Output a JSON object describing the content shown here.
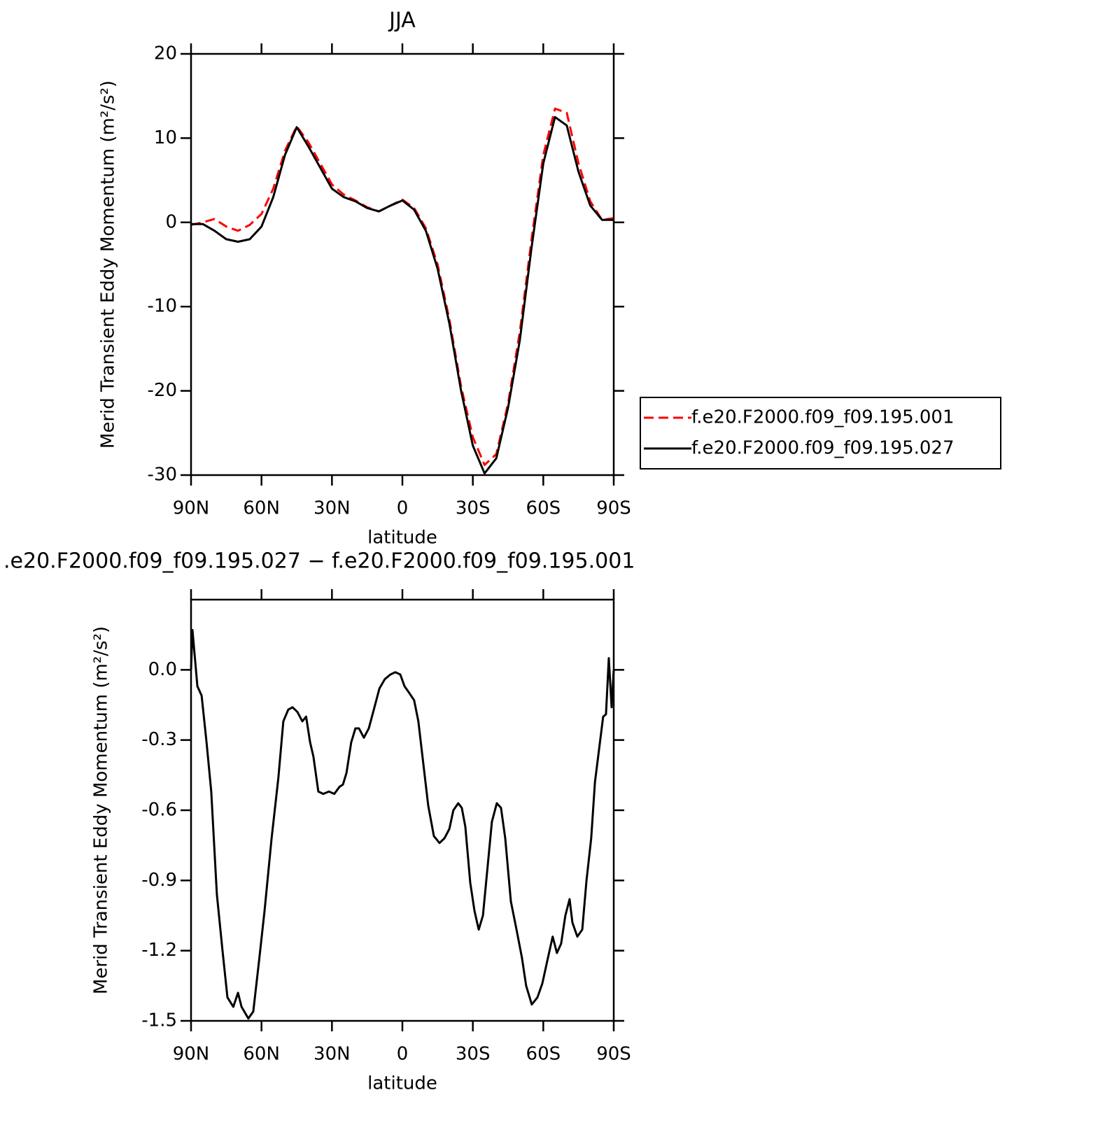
{
  "chart_data": [
    {
      "type": "line",
      "title": "JJA",
      "xlabel": "latitude",
      "ylabel": "Merid Transient Eddy Momentum (m²/s²)",
      "x": [
        90,
        85,
        80,
        75,
        70,
        65,
        60,
        55,
        50,
        45,
        40,
        35,
        30,
        25,
        20,
        15,
        10,
        5,
        0,
        -5,
        -10,
        -15,
        -20,
        -25,
        -30,
        -35,
        -40,
        -45,
        -50,
        -55,
        -60,
        -65,
        -70,
        -75,
        -80,
        -85,
        -90
      ],
      "xlim": [
        90,
        -90
      ],
      "xticks": [
        {
          "value": 90,
          "label": "90N"
        },
        {
          "value": 60,
          "label": "60N"
        },
        {
          "value": 30,
          "label": "30N"
        },
        0,
        {
          "value": -30,
          "label": "30S"
        },
        {
          "value": -60,
          "label": "60S"
        },
        {
          "value": -90,
          "label": "90S"
        }
      ],
      "ylim": [
        -30,
        20
      ],
      "yticks": [
        -30,
        -20,
        -10,
        0,
        10,
        20
      ],
      "legend": "right",
      "series": [
        {
          "name": "f.e20.F2000.f09_f09.195.001",
          "color": "#ff0000",
          "dashed": true,
          "values": [
            -0.3,
            0,
            0.4,
            -0.5,
            -1,
            -0.3,
            1,
            4,
            8.5,
            11.4,
            9.5,
            7,
            4.5,
            3.3,
            2.6,
            1.8,
            1.3,
            2,
            2.7,
            1.7,
            -0.7,
            -5,
            -11.5,
            -19.5,
            -25.5,
            -28.8,
            -27.5,
            -21.5,
            -13,
            -2,
            8,
            13.5,
            13,
            7,
            2.5,
            0.3,
            0.5
          ]
        },
        {
          "name": "f.e20.F2000.f09_f09.195.027",
          "color": "#000000",
          "dashed": false,
          "values": [
            -0.2,
            -0.2,
            -1,
            -2,
            -2.3,
            -2,
            -0.5,
            3,
            8,
            11.3,
            9,
            6.5,
            4,
            3,
            2.5,
            1.7,
            1.3,
            2,
            2.6,
            1.5,
            -1,
            -5.5,
            -12,
            -20,
            -26.5,
            -29.8,
            -28,
            -22,
            -14,
            -3,
            7,
            12.5,
            11.5,
            6,
            2,
            0.3,
            0.3
          ]
        }
      ]
    },
    {
      "type": "line",
      "title": ".e20.F2000.f09_f09.195.027 − f.e20.F2000.f09_f09.195.001",
      "xlabel": "latitude",
      "ylabel": "Merid Transient Eddy Momentum (m²/s²)",
      "x": [
        90,
        89.4,
        87.3,
        85.5,
        83.4,
        81.4,
        79,
        76.6,
        74.5,
        72,
        70,
        68.5,
        65.6,
        63.5,
        61,
        58.7,
        55.7,
        52.8,
        50.7,
        48.6,
        46.8,
        44.7,
        42.6,
        41,
        39.3,
        37.9,
        35.8,
        33.7,
        31.3,
        29,
        26.8,
        25.3,
        23.8,
        21.8,
        20,
        18.5,
        16.4,
        14.3,
        11.9,
        9.8,
        7.5,
        5.1,
        3,
        0.9,
        -0.9,
        -3,
        -5,
        -6.8,
        -8.9,
        -11,
        -13.4,
        -15.8,
        -17.9,
        -20,
        -21.7,
        -23.8,
        -25.3,
        -26.8,
        -28.9,
        -30.7,
        -32.5,
        -34.3,
        -36.3,
        -38.1,
        -40.2,
        -42,
        -43.8,
        -46.2,
        -48.6,
        -50.9,
        -52.7,
        -55.1,
        -57.5,
        -59.6,
        -62,
        -64,
        -65.8,
        -67.6,
        -69.4,
        -71.2,
        -72.4,
        -74.5,
        -76.6,
        -78.4,
        -80.4,
        -82,
        -84,
        -85.5,
        -86.7,
        -87.9,
        -89.1,
        -90
      ],
      "xlim": [
        90,
        -90
      ],
      "xticks": [
        {
          "value": 90,
          "label": "90N"
        },
        {
          "value": 60,
          "label": "60N"
        },
        {
          "value": 30,
          "label": "30N"
        },
        0,
        {
          "value": -30,
          "label": "30S"
        },
        {
          "value": -60,
          "label": "60S"
        },
        {
          "value": -90,
          "label": "90S"
        }
      ],
      "ylim": [
        -1.5,
        0.3
      ],
      "yticks": [
        -1.5,
        -1.2,
        -0.9,
        -0.6,
        -0.3,
        {
          "value": 0,
          "label": "0.0"
        }
      ],
      "series": [
        {
          "color": "#000000",
          "dashed": false,
          "values": [
            0,
            0.17,
            -0.07,
            -0.11,
            -0.31,
            -0.52,
            -0.96,
            -1.2,
            -1.4,
            -1.44,
            -1.38,
            -1.44,
            -1.49,
            -1.46,
            -1.24,
            -1.03,
            -0.72,
            -0.46,
            -0.22,
            -0.17,
            -0.16,
            -0.18,
            -0.22,
            -0.2,
            -0.31,
            -0.37,
            -0.52,
            -0.53,
            -0.52,
            -0.53,
            -0.5,
            -0.49,
            -0.44,
            -0.31,
            -0.25,
            -0.25,
            -0.29,
            -0.25,
            -0.16,
            -0.08,
            -0.04,
            -0.02,
            -0.01,
            -0.02,
            -0.07,
            -0.1,
            -0.13,
            -0.22,
            -0.4,
            -0.58,
            -0.71,
            -0.74,
            -0.72,
            -0.68,
            -0.6,
            -0.57,
            -0.59,
            -0.67,
            -0.91,
            -1.03,
            -1.11,
            -1.05,
            -0.84,
            -0.65,
            -0.57,
            -0.59,
            -0.72,
            -0.99,
            -1.11,
            -1.23,
            -1.35,
            -1.43,
            -1.4,
            -1.34,
            -1.23,
            -1.14,
            -1.21,
            -1.17,
            -1.05,
            -0.98,
            -1.08,
            -1.14,
            -1.11,
            -0.9,
            -0.72,
            -0.48,
            -0.32,
            -0.2,
            -0.19,
            0.05,
            -0.16,
            0
          ]
        }
      ]
    }
  ]
}
